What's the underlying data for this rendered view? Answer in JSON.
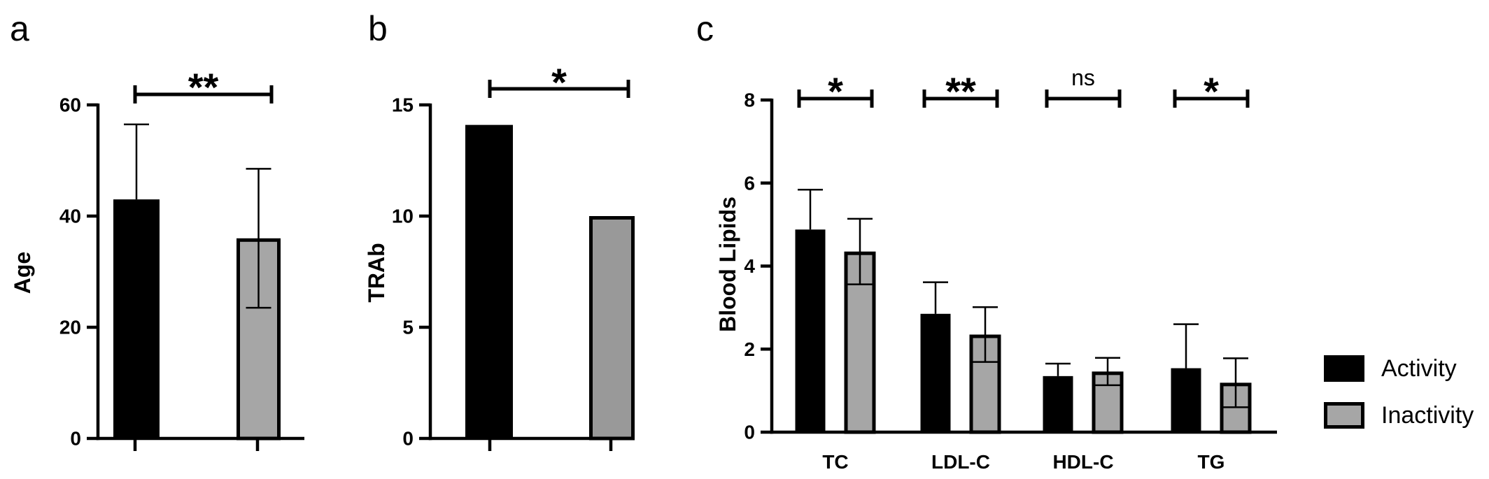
{
  "chart_data": [
    {
      "panel": "a",
      "type": "bar",
      "ylabel": "Age",
      "ylim": [
        0,
        60
      ],
      "yticks": [
        0,
        20,
        40,
        60
      ],
      "series": [
        {
          "name": "Activity",
          "value": 43,
          "error": 13.5
        },
        {
          "name": "Inactivity",
          "value": 36,
          "error": 12.5
        }
      ],
      "significance": "**"
    },
    {
      "panel": "b",
      "type": "bar",
      "ylabel": "TRAb",
      "ylim": [
        0,
        15
      ],
      "yticks": [
        0,
        5,
        10,
        15
      ],
      "series": [
        {
          "name": "Activity",
          "value": 14.1,
          "error": 0
        },
        {
          "name": "Inactivity",
          "value": 10,
          "error": 0
        }
      ],
      "significance": "*"
    },
    {
      "panel": "c",
      "type": "bar",
      "ylabel": "Blood Lipids",
      "ylim": [
        0,
        8
      ],
      "yticks": [
        0,
        2,
        4,
        6,
        8
      ],
      "categories": [
        "TC",
        "LDL-C",
        "HDL-C",
        "TG"
      ],
      "series": [
        {
          "name": "Activity",
          "values": [
            4.88,
            2.85,
            1.35,
            1.54
          ],
          "errors": [
            0.96,
            0.76,
            0.3,
            1.06
          ]
        },
        {
          "name": "Inactivity",
          "values": [
            4.35,
            2.35,
            1.46,
            1.19
          ],
          "errors": [
            0.79,
            0.66,
            0.33,
            0.59
          ]
        }
      ],
      "significance": [
        "*",
        "**",
        "ns",
        "*"
      ],
      "legend": [
        "Activity",
        "Inactivity"
      ],
      "legend_position": "right"
    }
  ],
  "colors": {
    "activity": "#000000",
    "inactivity_b": "#999999",
    "inactivity_ac": "#a6a6a6"
  }
}
